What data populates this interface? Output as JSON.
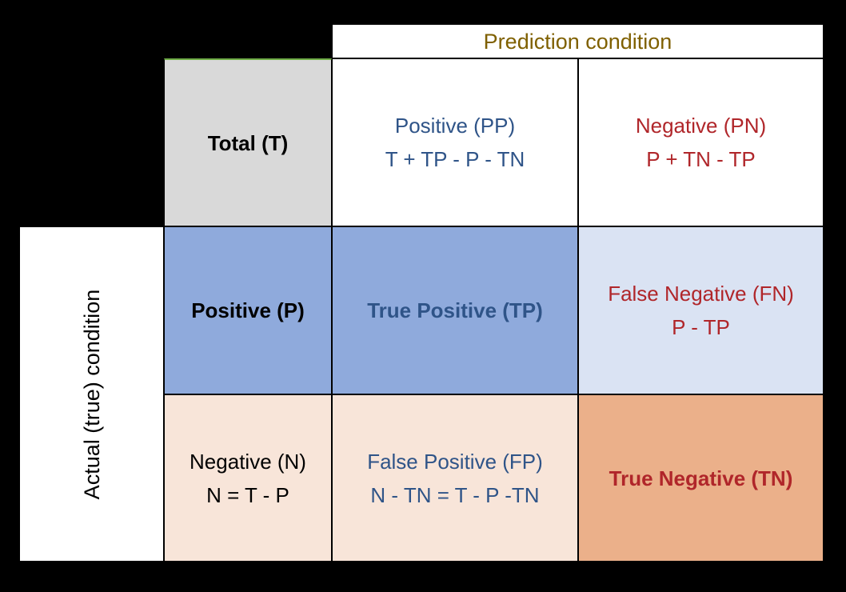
{
  "prediction_header": "Prediction condition",
  "actual_header": "Actual (true) condition",
  "total": {
    "label": "Total (T)"
  },
  "predicted_positive": {
    "label": "Positive (PP)",
    "formula": "T + TP - P - TN"
  },
  "predicted_negative": {
    "label": "Negative (PN)",
    "formula": "P + TN - TP"
  },
  "actual_positive": {
    "label": "Positive (P)"
  },
  "actual_negative": {
    "label": "Negative (N)",
    "formula": "N = T - P"
  },
  "true_positive": {
    "label": "True Positive (TP)"
  },
  "false_negative": {
    "label": "False Negative (FN)",
    "formula": "P - TP"
  },
  "false_positive": {
    "label": "False Positive (FP)",
    "formula": "N - TN = T - P -TN"
  },
  "true_negative": {
    "label": "True Negative (TN)"
  },
  "colors": {
    "blue_text": "#2f5488",
    "red_text": "#b0262a",
    "olive_text": "#7f6000",
    "gray_cell": "#d9d9d9",
    "blue_cell": "#8faadc",
    "light_blue_cell": "#dae3f3",
    "light_peach_cell": "#f8e5d9",
    "orange_cell": "#ebb08a"
  }
}
